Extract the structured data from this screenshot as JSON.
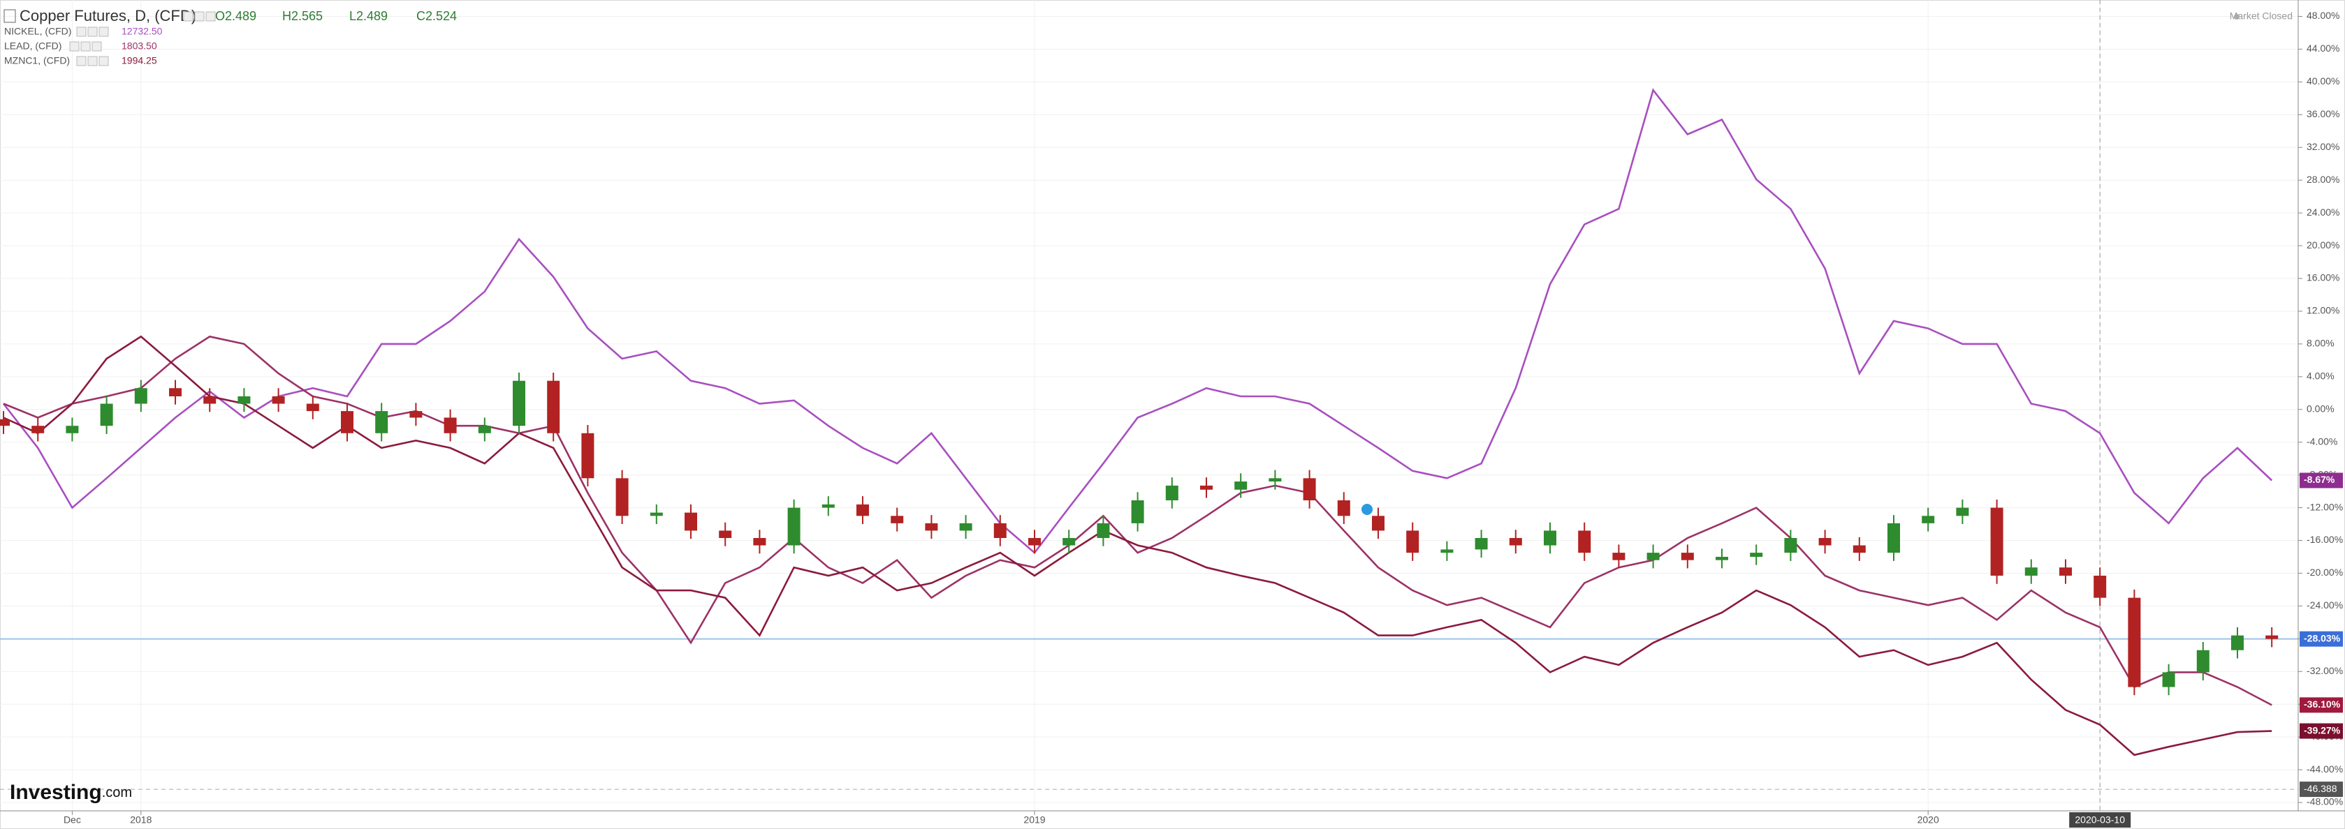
{
  "chart_data": {
    "type": "candlestick",
    "title": "Copper Futures, D, (CFD)",
    "ohlc_legend": [
      "O2.489",
      "H2.565",
      "L2.489",
      "C2.524"
    ],
    "status": "Market Closed",
    "logo": {
      "main": "Investing",
      "suffix": ".com"
    },
    "categories": [
      null,
      null,
      "Dec",
      null,
      "2018",
      null,
      null,
      null,
      null,
      null,
      null,
      null,
      null,
      null,
      null,
      null,
      null,
      null,
      null,
      null,
      null,
      null,
      null,
      null,
      null,
      null,
      null,
      null,
      null,
      null,
      "2019",
      null,
      null,
      null,
      null,
      null,
      null,
      null,
      null,
      null,
      null,
      null,
      null,
      null,
      null,
      null,
      null,
      null,
      null,
      null,
      null,
      null,
      null,
      null,
      null,
      null,
      "2020",
      null,
      null,
      null,
      null,
      "2020-03-10",
      null,
      null,
      null,
      null,
      null
    ],
    "highlight": "2020-03-10",
    "ylim": [
      -48,
      48
    ],
    "yticks": [
      {
        "value": 48,
        "label": "48.00%"
      },
      {
        "value": 44,
        "label": "44.00%"
      },
      {
        "value": 40,
        "label": "40.00%"
      },
      {
        "value": 36,
        "label": "36.00%"
      },
      {
        "value": 32,
        "label": "32.00%"
      },
      {
        "value": 28,
        "label": "28.00%"
      },
      {
        "value": 24,
        "label": "24.00%"
      },
      {
        "value": 20,
        "label": "20.00%"
      },
      {
        "value": 16,
        "label": "16.00%"
      },
      {
        "value": 12,
        "label": "12.00%"
      },
      {
        "value": 8,
        "label": "8.00%"
      },
      {
        "value": 4,
        "label": "4.00%"
      },
      {
        "value": 0,
        "label": "0.00%"
      },
      {
        "value": -4,
        "label": "-4.00%"
      },
      {
        "value": -8,
        "label": "-8.00%"
      },
      {
        "value": -12,
        "label": "-12.00%"
      },
      {
        "value": -16,
        "label": "-16.00%"
      },
      {
        "value": -20,
        "label": "-20.00%"
      },
      {
        "value": -24,
        "label": "-24.00%"
      },
      {
        "value": -28,
        "label": "-28.00%"
      },
      {
        "value": -32,
        "label": "-32.00%"
      },
      {
        "value": -36,
        "label": "-36.00%"
      },
      {
        "value": -40,
        "label": "-40.00%"
      },
      {
        "value": -44,
        "label": "-44.00%"
      },
      {
        "value": -48,
        "label": "-48.00%"
      }
    ],
    "grid": true,
    "reference_line": {
      "value": -46.388,
      "label": "-46.388"
    },
    "candles": {
      "up_color": "#2e8b2e",
      "down_color": "#b22222",
      "label_color": "#3a6fd8",
      "last_label": "-28.03%",
      "open": [
        -1.2,
        -2,
        -2.9,
        -2,
        0.7,
        2.6,
        1.6,
        0.7,
        1.6,
        0.7,
        -0.2,
        -2.9,
        -0.2,
        -1,
        -2.9,
        -2,
        3.5,
        -2.9,
        -8.4,
        -13,
        -12.6,
        -14.8,
        -15.7,
        -16.6,
        -12,
        -11.6,
        -13,
        -13.9,
        -14.8,
        -13.9,
        -15.7,
        -16.6,
        -15.7,
        -13.9,
        -11.1,
        -9.3,
        -9.8,
        -8.8,
        -8.4,
        -11.1,
        -13,
        -14.8,
        -17.5,
        -17.1,
        -15.7,
        -16.6,
        -14.8,
        -17.5,
        -18.4,
        -17.5,
        -18.4,
        -18,
        -17.5,
        -15.7,
        -16.6,
        -17.5,
        -13.9,
        -13,
        -12,
        -20.3,
        -19.3,
        -20.3,
        -23,
        -33.9,
        -32.1,
        -29.4,
        -27.6
      ],
      "high": [
        -0.2,
        -1,
        -1,
        1.7,
        3.6,
        3.6,
        2.6,
        2.6,
        2.6,
        1.7,
        0.8,
        0.8,
        0.8,
        0,
        -1,
        4.5,
        4.5,
        -1.9,
        -7.4,
        -11.6,
        -11.6,
        -13.8,
        -14.7,
        -11,
        -10.6,
        -10.6,
        -12,
        -12.9,
        -12.9,
        -12.9,
        -14.7,
        -14.7,
        -12.9,
        -10.1,
        -8.3,
        -8.3,
        -7.8,
        -7.4,
        -7.4,
        -10.1,
        -12,
        -13.8,
        -16.1,
        -14.7,
        -14.7,
        -13.8,
        -13.8,
        -16.5,
        -16.5,
        -16.5,
        -17,
        -16.5,
        -14.7,
        -14.7,
        -15.6,
        -12.9,
        -12,
        -11,
        -11,
        -18.3,
        -18.3,
        -19.3,
        -22,
        -31.1,
        -28.4,
        -26.6,
        -26.6
      ],
      "low": [
        -3,
        -3.9,
        -3.9,
        -3,
        -0.3,
        0.6,
        -0.3,
        -0.3,
        -0.3,
        -1.2,
        -3.9,
        -3.9,
        -2,
        -3.9,
        -3.9,
        -3,
        -3.9,
        -9.4,
        -14,
        -14,
        -15.8,
        -16.7,
        -17.6,
        -17.6,
        -13,
        -14,
        -14.9,
        -15.8,
        -15.8,
        -16.7,
        -17.6,
        -17.6,
        -16.7,
        -14.9,
        -12.1,
        -10.8,
        -10.8,
        -9.8,
        -12.1,
        -14,
        -15.8,
        -18.5,
        -18.5,
        -18.1,
        -17.6,
        -17.6,
        -18.5,
        -19.4,
        -19.4,
        -19.4,
        -19.4,
        -19,
        -18.5,
        -17.6,
        -18.5,
        -18.5,
        -14.9,
        -14,
        -21.3,
        -21.3,
        -21.3,
        -24,
        -34.9,
        -34.9,
        -33.1,
        -30.4,
        -29.03
      ],
      "close": [
        -2,
        -2.9,
        -2,
        0.7,
        2.6,
        1.6,
        0.7,
        1.6,
        0.7,
        -0.2,
        -2.9,
        -0.2,
        -1,
        -2.9,
        -2,
        3.5,
        -2.9,
        -8.4,
        -13,
        -12.6,
        -14.8,
        -15.7,
        -16.6,
        -12,
        -11.6,
        -13,
        -13.9,
        -14.8,
        -13.9,
        -15.7,
        -16.6,
        -15.7,
        -13.9,
        -11.1,
        -9.3,
        -9.8,
        -8.8,
        -8.4,
        -11.1,
        -13,
        -14.8,
        -17.5,
        -17.1,
        -15.7,
        -16.6,
        -14.8,
        -17.5,
        -18.4,
        -17.5,
        -18.4,
        -18,
        -17.5,
        -15.7,
        -16.6,
        -17.5,
        -13.9,
        -13,
        -12,
        -20.3,
        -19.3,
        -20.3,
        -23,
        -33.9,
        -32.1,
        -29.4,
        -27.6,
        -28.03
      ]
    },
    "series": [
      {
        "name": "NICKEL, (CFD)",
        "price": "12732.50",
        "color": "#a84fc0",
        "label_color": "#8e2d8f",
        "last_label": "-8.67%",
        "values": [
          0.7,
          -4.7,
          -12,
          -8.4,
          -4.7,
          -1,
          2.2,
          -1,
          1.6,
          2.6,
          1.6,
          8,
          8,
          10.8,
          14.4,
          20.8,
          16.2,
          9.9,
          6.2,
          7.1,
          3.5,
          2.6,
          0.7,
          1.1,
          -2,
          -4.7,
          -6.6,
          -2.9,
          -8.4,
          -13.9,
          -17.5,
          -12,
          -6.6,
          -1,
          0.7,
          2.6,
          1.6,
          1.6,
          0.7,
          -2,
          -4.7,
          -7.5,
          -8.4,
          -6.6,
          2.6,
          15.3,
          22.6,
          24.5,
          39,
          33.6,
          35.4,
          28.1,
          24.5,
          17.2,
          4.4,
          10.8,
          9.9,
          8,
          8,
          0.7,
          -0.2,
          -2.9,
          -10.2,
          -13.9,
          -8.4,
          -4.7,
          -8.67
        ]
      },
      {
        "name": "LEAD, (CFD)",
        "price": "1803.50",
        "color": "#9c3266",
        "label_color": "#a01a3e",
        "last_label": "-36.10%",
        "values": [
          0.7,
          -1,
          0.7,
          1.6,
          2.6,
          6.2,
          8.9,
          8,
          4.4,
          1.6,
          0.7,
          -1,
          -0.2,
          -2,
          -2,
          -2.9,
          -2,
          -10.2,
          -17.5,
          -22.1,
          -28.5,
          -21.2,
          -19.3,
          -15.7,
          -19.3,
          -21.2,
          -18.4,
          -23,
          -20.3,
          -18.4,
          -19.3,
          -16.6,
          -13,
          -17.5,
          -15.7,
          -13,
          -10.2,
          -9.3,
          -10.2,
          -14.8,
          -19.3,
          -22.1,
          -23.9,
          -23,
          -24.8,
          -26.6,
          -21.2,
          -19.3,
          -18.4,
          -15.7,
          -13.9,
          -12,
          -15.7,
          -20.3,
          -22.1,
          -23,
          -23.9,
          -23,
          -25.7,
          -22.1,
          -24.8,
          -26.6,
          -33.9,
          -32.1,
          -32.1,
          -33.9,
          -36.1
        ]
      },
      {
        "name": "MZNC1, (CFD)",
        "price": "1994.25",
        "color": "#8b1a3c",
        "label_color": "#7a0f2e",
        "last_label": "-39.27%",
        "values": [
          -1,
          -2.9,
          0.7,
          6.2,
          8.9,
          5.3,
          1.6,
          0.7,
          -2,
          -4.7,
          -2,
          -4.7,
          -3.8,
          -4.7,
          -6.6,
          -2.9,
          -4.7,
          -12,
          -19.3,
          -22.1,
          -22.1,
          -23,
          -27.6,
          -19.3,
          -20.3,
          -19.3,
          -22.1,
          -21.2,
          -19.3,
          -17.5,
          -20.3,
          -17.5,
          -14.8,
          -16.6,
          -17.5,
          -19.3,
          -20.3,
          -21.2,
          -23,
          -24.8,
          -27.6,
          -27.6,
          -26.6,
          -25.7,
          -28.5,
          -32.1,
          -30.2,
          -31.2,
          -28.5,
          -26.6,
          -24.8,
          -22.1,
          -23.9,
          -26.6,
          -30.2,
          -29.4,
          -31.2,
          -30.2,
          -28.5,
          -33,
          -36.7,
          -38.5,
          -42.2,
          -41.2,
          -40.3,
          -39.4,
          -39.27
        ]
      }
    ]
  }
}
